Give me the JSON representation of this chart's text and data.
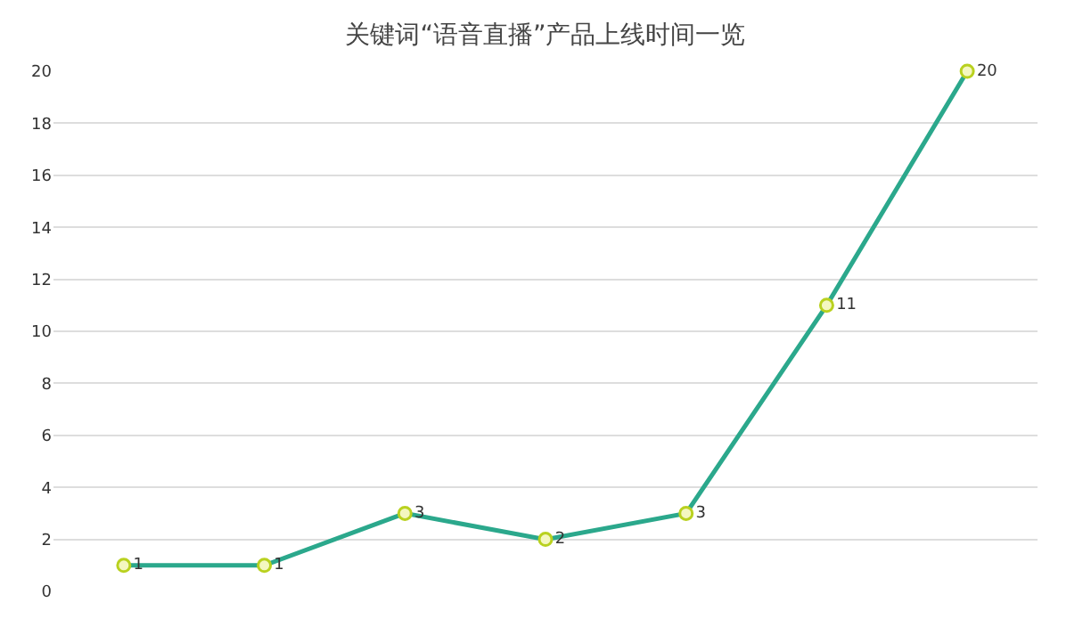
{
  "chart_data": {
    "type": "line",
    "title": "关键词“语音直播”产品上线时间一览",
    "categories": [
      null,
      null,
      null,
      null,
      null,
      null,
      null
    ],
    "series": [
      {
        "color": "#2ba88c",
        "values": [
          1,
          1,
          3,
          2,
          3,
          11,
          20
        ]
      }
    ],
    "ylim": [
      0,
      20
    ],
    "yticks": [
      0,
      2,
      4,
      6,
      8,
      10,
      12,
      14,
      16,
      18,
      20
    ],
    "grid": "y",
    "marker": "circle",
    "line_style": "solid",
    "data_labels": true,
    "legend": false
  }
}
